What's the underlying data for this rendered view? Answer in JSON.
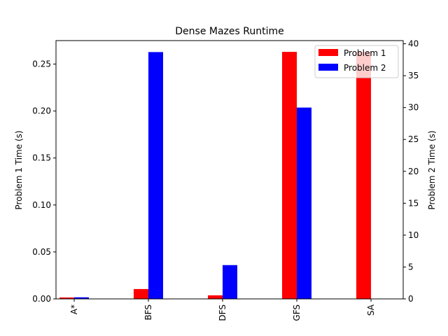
{
  "chart_data": {
    "type": "bar",
    "title": "Dense Mazes Runtime",
    "xlabel": "",
    "categories": [
      "A*",
      "BFS",
      "DFS",
      "GFS",
      "SA"
    ],
    "series": [
      {
        "name": "Problem 1",
        "color": "#ff0000",
        "axis": "left",
        "values": [
          0.0015,
          0.0105,
          0.0038,
          0.263,
          0.263
        ]
      },
      {
        "name": "Problem 2",
        "color": "#0000ff",
        "axis": "right",
        "values": [
          0.25,
          38.7,
          5.3,
          30.0,
          0
        ]
      }
    ],
    "y_left": {
      "label": "Problem 1 Time (s)",
      "lim": [
        0,
        0.275
      ],
      "ticks": [
        0.0,
        0.05,
        0.1,
        0.15,
        0.2,
        0.25
      ],
      "tick_labels": [
        "0.00",
        "0.05",
        "0.10",
        "0.15",
        "0.20",
        "0.25"
      ]
    },
    "y_right": {
      "label": "Problem 2 Time (s)",
      "lim": [
        0,
        40.5
      ],
      "ticks": [
        0,
        5,
        10,
        15,
        20,
        25,
        30,
        35,
        40
      ],
      "tick_labels": [
        "0",
        "5",
        "10",
        "15",
        "20",
        "25",
        "30",
        "35",
        "40"
      ]
    },
    "grid": false,
    "legend_position": "top-right"
  }
}
